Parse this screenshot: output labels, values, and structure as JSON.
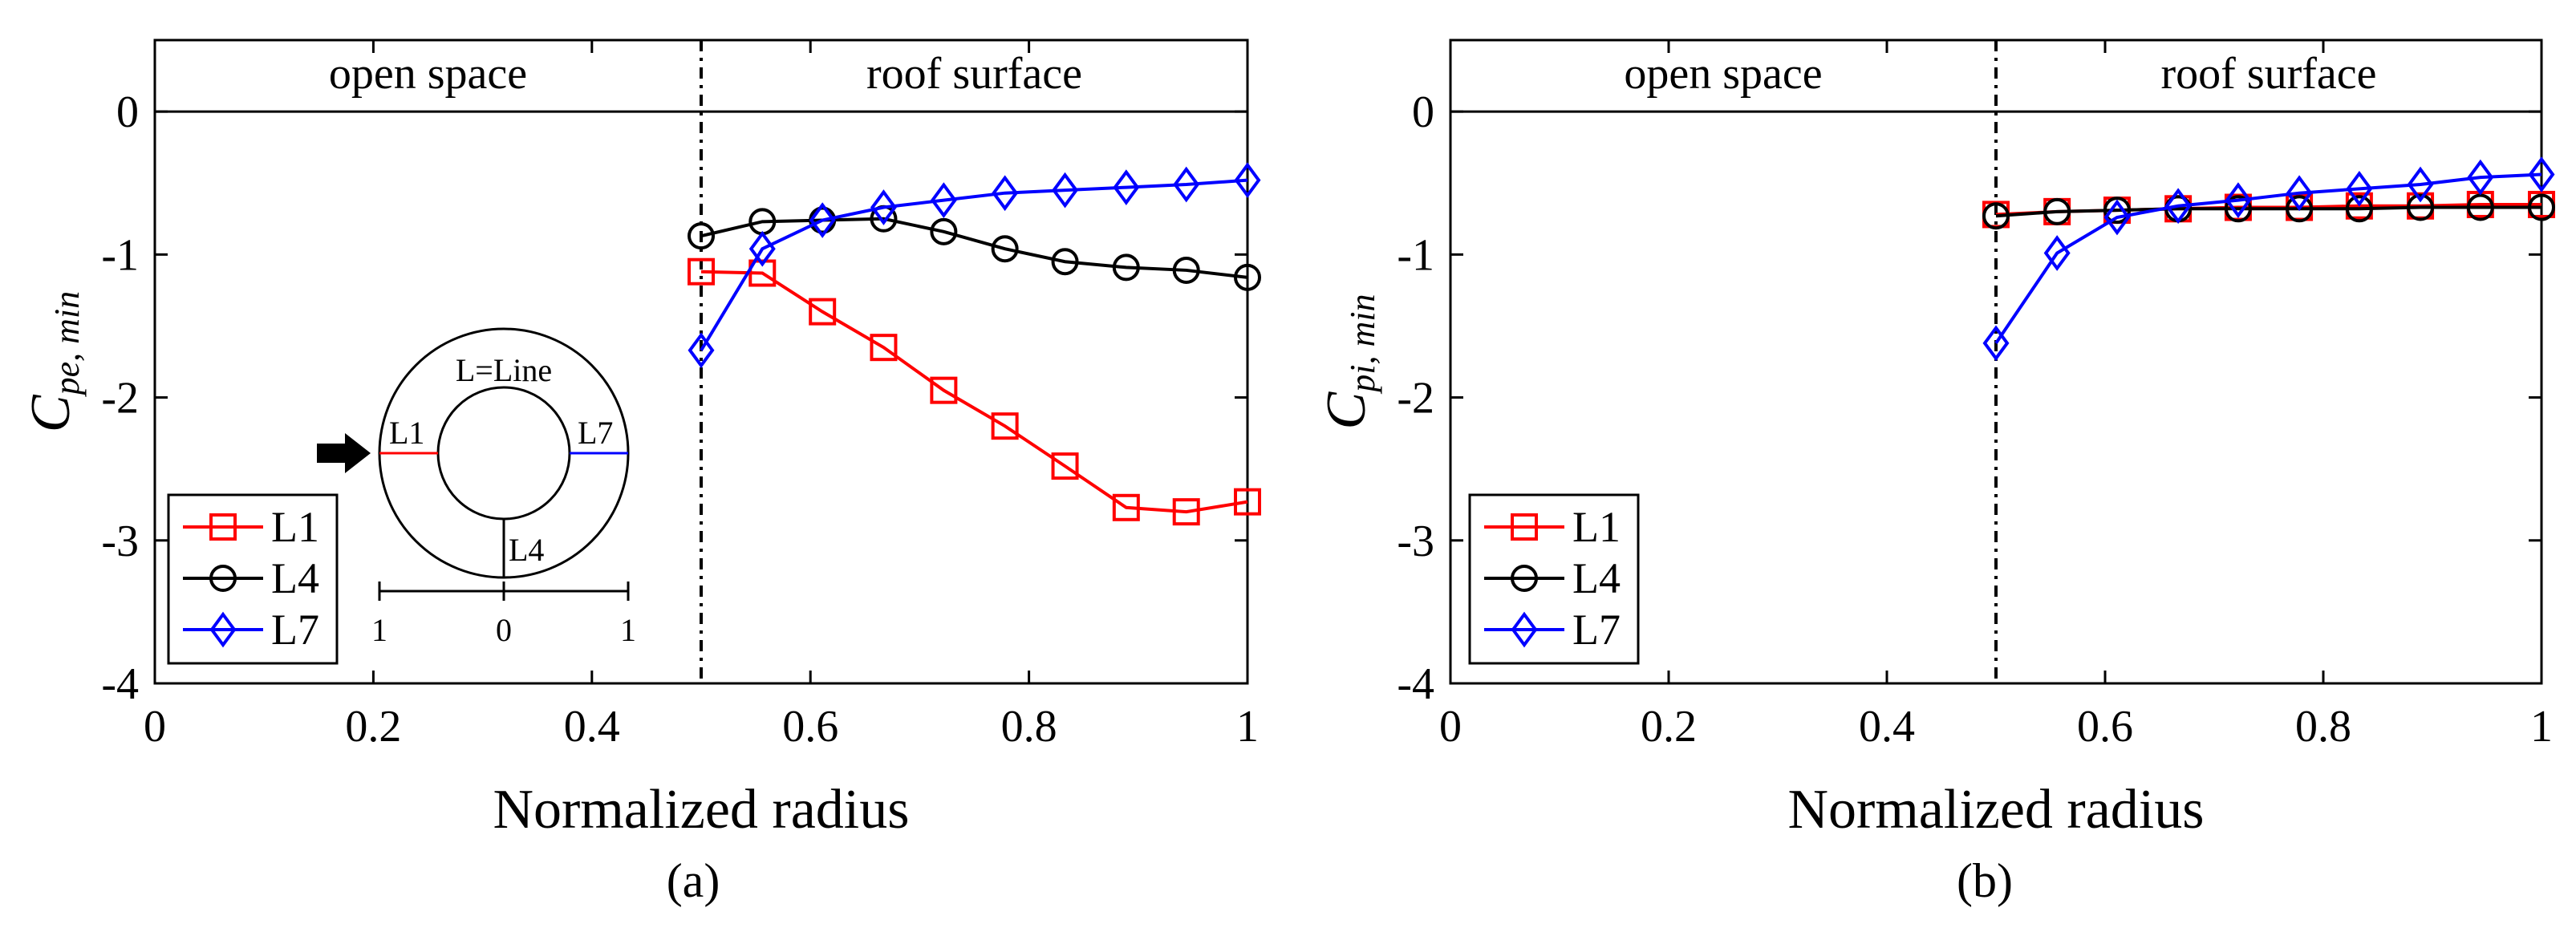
{
  "chart_data": [
    {
      "type": "line",
      "panel_label": "(a)",
      "xlabel": "Normalized radius",
      "ylabel_main": "C",
      "ylabel_sub": "pe, min",
      "xlim": [
        0,
        1
      ],
      "ylim": [
        -4,
        0.5
      ],
      "xticks": [
        0,
        0.2,
        0.4,
        0.6,
        0.8,
        1
      ],
      "xtick_labels": [
        "0",
        "0.2",
        "0.4",
        "0.6",
        "0.8",
        "1"
      ],
      "yticks": [
        0,
        -1,
        -2,
        -3,
        -4
      ],
      "ytick_labels": [
        "0",
        "-1",
        "-2",
        "-3",
        "-4"
      ],
      "divider_x": 0.5,
      "regions": [
        "open space",
        "roof surface"
      ],
      "x": [
        0.5,
        0.556,
        0.611,
        0.667,
        0.722,
        0.778,
        0.833,
        0.889,
        0.944,
        1.0
      ],
      "series": [
        {
          "name": "L1",
          "marker": "square",
          "color": "#ff0000",
          "values": [
            -1.12,
            -1.13,
            -1.4,
            -1.65,
            -1.95,
            -2.2,
            -2.48,
            -2.77,
            -2.8,
            -2.73
          ]
        },
        {
          "name": "L4",
          "marker": "circle",
          "color": "#000000",
          "values": [
            -0.87,
            -0.77,
            -0.76,
            -0.75,
            -0.84,
            -0.96,
            -1.05,
            -1.09,
            -1.11,
            -1.16
          ]
        },
        {
          "name": "L7",
          "marker": "diamond",
          "color": "#0000ff",
          "values": [
            -1.67,
            -0.96,
            -0.76,
            -0.67,
            -0.62,
            -0.57,
            -0.55,
            -0.53,
            -0.51,
            -0.48
          ]
        }
      ],
      "inset": {
        "title": "L=Line",
        "line_labels": [
          "L1",
          "L4",
          "L7"
        ],
        "scale_labels": [
          "1",
          "0",
          "1"
        ]
      }
    },
    {
      "type": "line",
      "panel_label": "(b)",
      "xlabel": "Normalized radius",
      "ylabel_main": "C",
      "ylabel_sub": "pi, min",
      "xlim": [
        0,
        1
      ],
      "ylim": [
        -4,
        0.5
      ],
      "xticks": [
        0,
        0.2,
        0.4,
        0.6,
        0.8,
        1
      ],
      "xtick_labels": [
        "0",
        "0.2",
        "0.4",
        "0.6",
        "0.8",
        "1"
      ],
      "yticks": [
        0,
        -1,
        -2,
        -3,
        -4
      ],
      "ytick_labels": [
        "0",
        "-1",
        "-2",
        "-3",
        "-4"
      ],
      "divider_x": 0.5,
      "regions": [
        "open space",
        "roof surface"
      ],
      "x": [
        0.5,
        0.556,
        0.611,
        0.667,
        0.722,
        0.778,
        0.833,
        0.889,
        0.944,
        1.0
      ],
      "series": [
        {
          "name": "L1",
          "marker": "square",
          "color": "#ff0000",
          "values": [
            -0.72,
            -0.7,
            -0.69,
            -0.68,
            -0.67,
            -0.67,
            -0.66,
            -0.66,
            -0.65,
            -0.65
          ]
        },
        {
          "name": "L4",
          "marker": "circle",
          "color": "#000000",
          "values": [
            -0.73,
            -0.7,
            -0.69,
            -0.68,
            -0.68,
            -0.68,
            -0.68,
            -0.67,
            -0.67,
            -0.67
          ]
        },
        {
          "name": "L7",
          "marker": "diamond",
          "color": "#0000ff",
          "values": [
            -1.62,
            -0.99,
            -0.74,
            -0.66,
            -0.62,
            -0.57,
            -0.54,
            -0.51,
            -0.46,
            -0.44
          ]
        }
      ]
    }
  ]
}
